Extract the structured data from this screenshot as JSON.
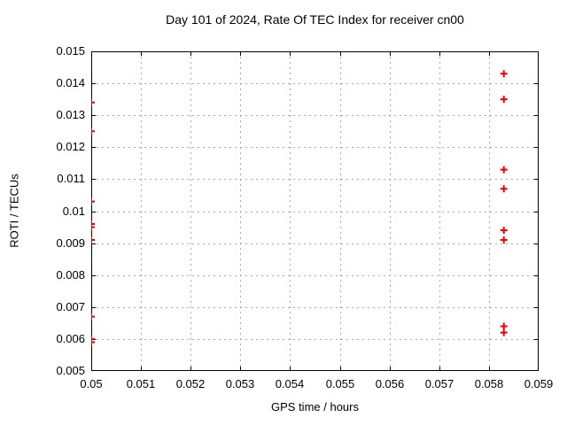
{
  "chart_data": {
    "type": "scatter",
    "title": "Day 101 of 2024, Rate Of TEC Index for receiver cn00",
    "xlabel": "GPS time / hours",
    "ylabel": "ROTI / TECUs",
    "xlim": [
      0.05,
      0.059
    ],
    "ylim": [
      0.005,
      0.015
    ],
    "x_ticks": [
      "0.05",
      "0.051",
      "0.052",
      "0.053",
      "0.054",
      "0.055",
      "0.056",
      "0.057",
      "0.058",
      "0.059"
    ],
    "y_ticks": [
      "0.005",
      "0.006",
      "0.007",
      "0.008",
      "0.009",
      "0.01",
      "0.011",
      "0.012",
      "0.013",
      "0.014",
      "0.015"
    ],
    "grid": true,
    "grid_style": "dotted",
    "legend_position": "none",
    "marker": "plus",
    "colors": {
      "marker": "#ee0000",
      "axis": "#000000",
      "grid": "#a8a8a8",
      "background": "#ffffff"
    },
    "series": [
      {
        "name": "ROTI",
        "points": [
          [
            0.05,
            0.0134
          ],
          [
            0.05,
            0.0125
          ],
          [
            0.05,
            0.0103
          ],
          [
            0.05,
            0.0096
          ],
          [
            0.05,
            0.0095
          ],
          [
            0.05,
            0.0091
          ],
          [
            0.05,
            0.0067
          ],
          [
            0.05,
            0.006
          ],
          [
            0.05,
            0.0059
          ],
          [
            0.0583,
            0.0143
          ],
          [
            0.0583,
            0.0135
          ],
          [
            0.0583,
            0.0113
          ],
          [
            0.0583,
            0.0107
          ],
          [
            0.0583,
            0.0094
          ],
          [
            0.0583,
            0.0091
          ],
          [
            0.0583,
            0.0064
          ],
          [
            0.0583,
            0.0062
          ]
        ]
      }
    ]
  }
}
